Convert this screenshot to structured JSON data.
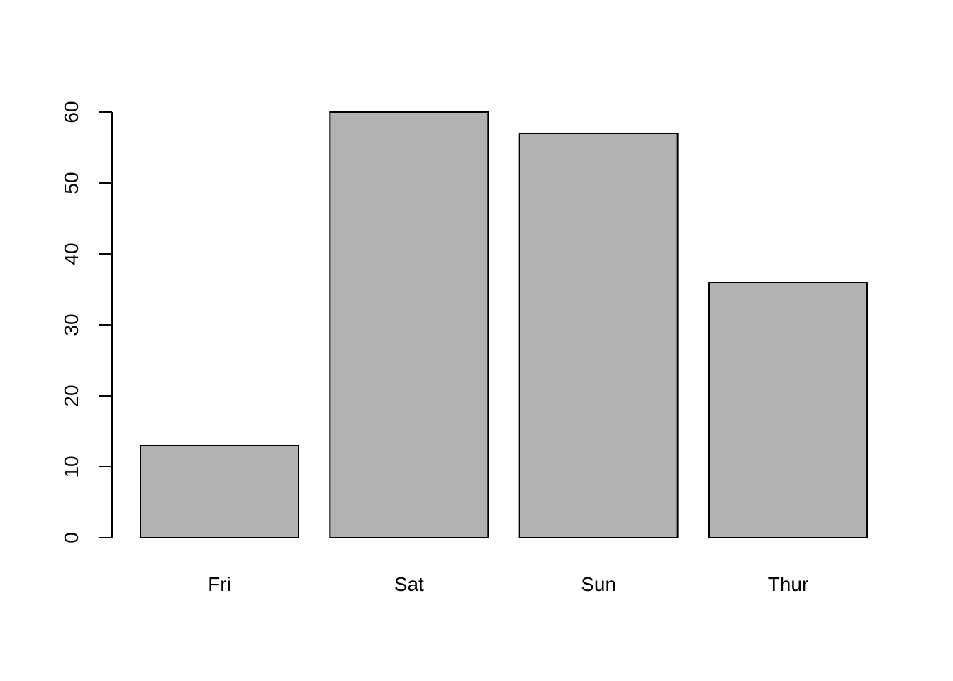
{
  "chart_data": {
    "type": "bar",
    "title": "",
    "xlabel": "",
    "ylabel": "",
    "categories": [
      "Fri",
      "Sat",
      "Sun",
      "Thur"
    ],
    "values": [
      13,
      60,
      57,
      36
    ],
    "ylim": [
      0,
      60
    ],
    "yticks": [
      0,
      10,
      20,
      30,
      40,
      50,
      60
    ],
    "ytick_labels": [
      "0",
      "10",
      "20",
      "30",
      "40",
      "50",
      "60"
    ],
    "grid": false,
    "bar_color": "#b2b2b2",
    "edge_color": "#000000"
  }
}
